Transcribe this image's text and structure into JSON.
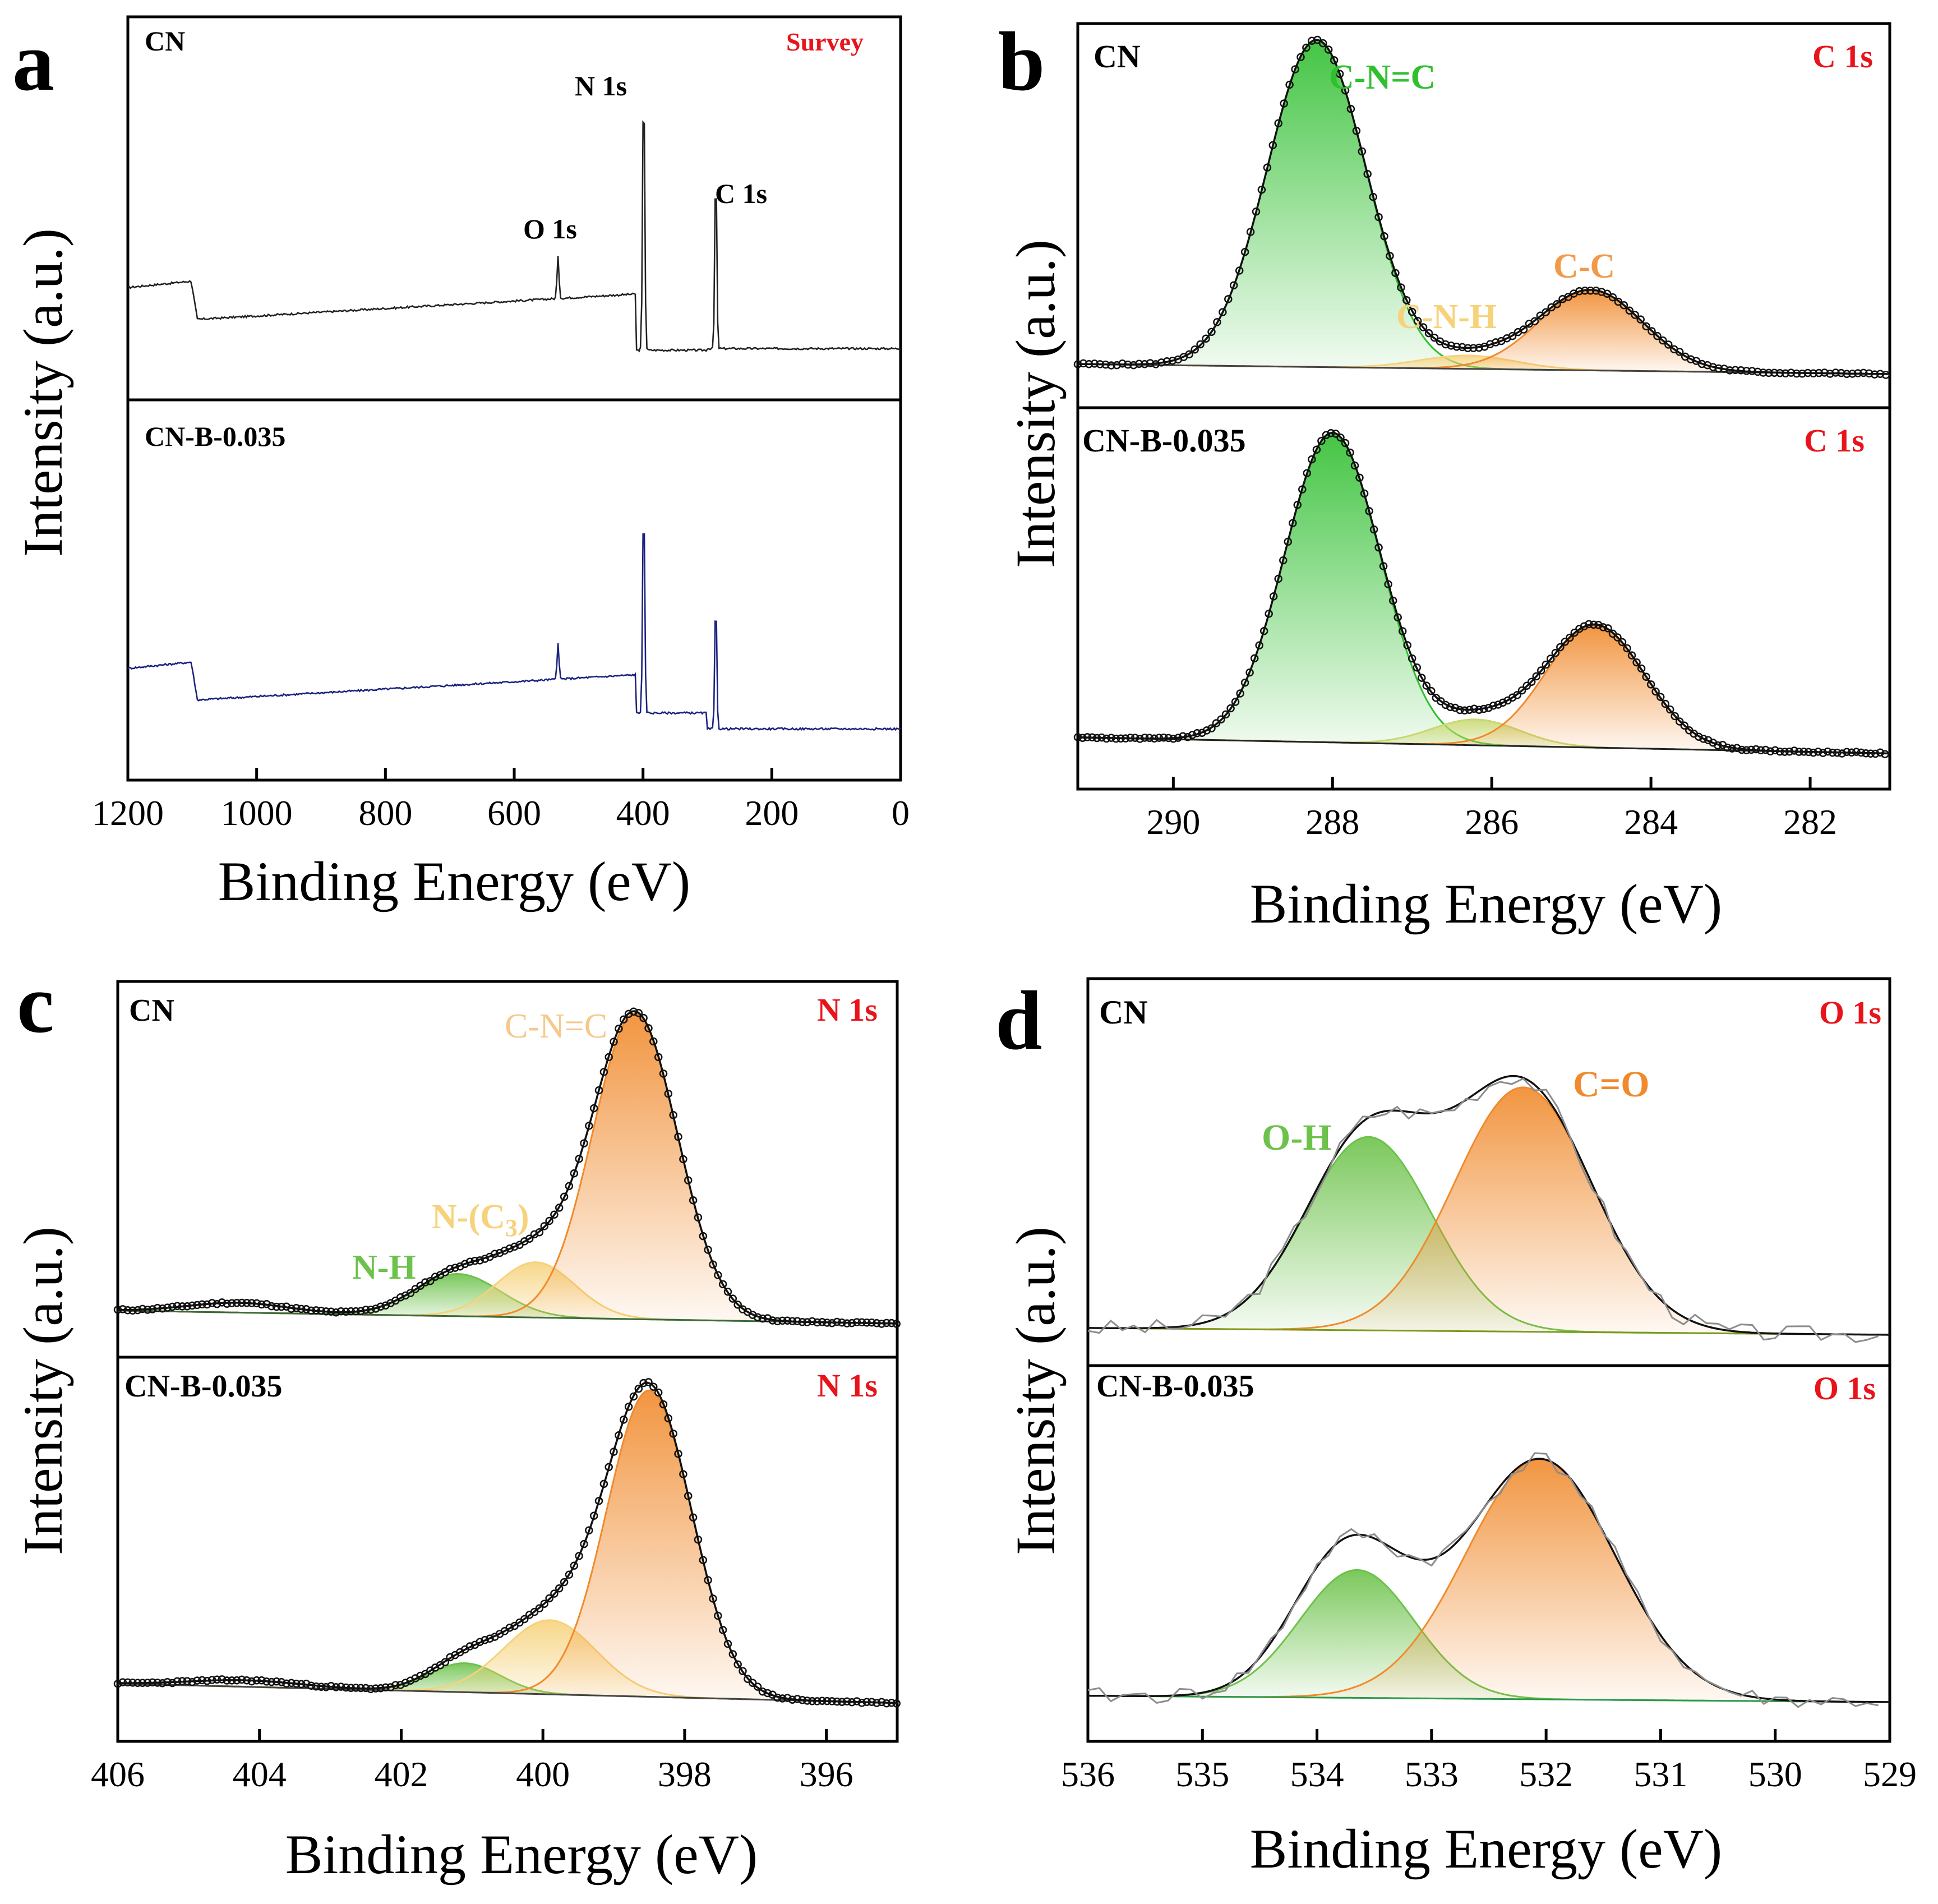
{
  "figure": {
    "colors": {
      "green": "#2fbf2f",
      "green_fill": "#5ad65a",
      "orange": "#f08a2c",
      "orange_fill": "#f39a4a",
      "yellow": "#f6d27a",
      "yellow_fill": "#f6dd8e",
      "olive": "#9bbf3a",
      "red_label": "#e8141b",
      "blue_trace": "#1a237e",
      "gray_trace": "#8c8c8c"
    },
    "panels": [
      {
        "label": "a",
        "y_label": "Intensity (a.u.)",
        "x_label": "Binding Energy (eV)",
        "xlim": [
          1200,
          0
        ],
        "xticks": [
          1200,
          1000,
          800,
          600,
          400,
          200,
          0
        ],
        "tick_labels": [
          "1200",
          "1000",
          "800",
          "600",
          "400",
          "200",
          "0"
        ],
        "subplots": [
          {
            "sample": "CN",
            "region": "Survey",
            "trace_color": "#222222",
            "peaks": [
              {
                "name": "O 1s",
                "x": 532
              },
              {
                "name": "N 1s",
                "x": 399
              },
              {
                "name": "C 1s",
                "x": 287
              }
            ]
          },
          {
            "sample": "CN-B-0.035",
            "region": "",
            "trace_color": "#1a237e",
            "peaks": [
              {
                "name": "",
                "x": 532
              },
              {
                "name": "",
                "x": 399
              },
              {
                "name": "",
                "x": 287
              }
            ]
          }
        ]
      },
      {
        "label": "b",
        "y_label": "Intensity (a.u.)",
        "x_label": "Binding Energy (eV)",
        "xlim": [
          291.2,
          281
        ],
        "xticks": [
          290,
          288,
          286,
          284,
          282
        ],
        "tick_labels": [
          "290",
          "288",
          "286",
          "284",
          "282"
        ],
        "subplots": [
          {
            "sample": "CN",
            "region": "C 1s",
            "components": [
              {
                "name": "C-N=C",
                "center": 288.2,
                "height": 0.98,
                "width": 0.62,
                "color": "#2fbf2f"
              },
              {
                "name": "C-N-H",
                "center": 286.3,
                "height": 0.04,
                "width": 0.6,
                "color": "#f6d27a"
              },
              {
                "name": "C-C",
                "center": 284.75,
                "height": 0.24,
                "width": 0.65,
                "color": "#f08a2c"
              }
            ]
          },
          {
            "sample": "CN-B-0.035",
            "region": "C 1s",
            "components": [
              {
                "name": "C-N=C",
                "center": 288.0,
                "height": 0.96,
                "width": 0.6,
                "color": "#2fbf2f"
              },
              {
                "name": "C-N-H",
                "center": 286.2,
                "height": 0.08,
                "width": 0.55,
                "color": "#c8d870"
              },
              {
                "name": "C-C",
                "center": 284.7,
                "height": 0.38,
                "width": 0.62,
                "color": "#f08a2c"
              }
            ]
          }
        ]
      },
      {
        "label": "c",
        "y_label": "Intensity (a.u.)",
        "x_label": "Binding Energy (eV)",
        "xlim": [
          406,
          395
        ],
        "xticks": [
          406,
          404,
          402,
          400,
          398,
          396
        ],
        "tick_labels": [
          "406",
          "404",
          "402",
          "400",
          "398",
          "396"
        ],
        "subplots": [
          {
            "sample": "CN",
            "region": "N 1s",
            "components": [
              {
                "name": "N-H",
                "center": 401.2,
                "height": 0.13,
                "width": 0.6,
                "color": "#6cc24a"
              },
              {
                "name": "N-(C3)",
                "center": 400.1,
                "height": 0.17,
                "width": 0.55,
                "color": "#f6d27a"
              },
              {
                "name": "C-N=C",
                "center": 398.7,
                "height": 0.94,
                "width": 0.6,
                "color": "#f08a2c"
              }
            ]
          },
          {
            "sample": "CN-B-0.035",
            "region": "N 1s",
            "components": [
              {
                "name": "",
                "center": 401.1,
                "height": 0.09,
                "width": 0.5,
                "color": "#6cc24a"
              },
              {
                "name": "",
                "center": 399.9,
                "height": 0.23,
                "width": 0.65,
                "color": "#f6d27a"
              },
              {
                "name": "",
                "center": 398.5,
                "height": 0.95,
                "width": 0.6,
                "color": "#f08a2c"
              }
            ]
          }
        ]
      },
      {
        "label": "d",
        "y_label": "Intensity (a.u.)",
        "x_label": "Binding Energy (eV)",
        "xlim": [
          536,
          529
        ],
        "xticks": [
          536,
          535,
          534,
          533,
          532,
          531,
          530,
          529
        ],
        "tick_labels": [
          "536",
          "535",
          "534",
          "533",
          "532",
          "531",
          "530",
          "529"
        ],
        "subplots": [
          {
            "sample": "CN",
            "region": "O 1s",
            "components": [
              {
                "name": "O-H",
                "center": 533.55,
                "height": 0.57,
                "width": 0.55,
                "color": "#6cc24a"
              },
              {
                "name": "C=O",
                "center": 532.2,
                "height": 0.72,
                "width": 0.6,
                "color": "#f08a2c"
              }
            ]
          },
          {
            "sample": "CN-B-0.035",
            "region": "O 1s",
            "components": [
              {
                "name": "",
                "center": 533.65,
                "height": 0.4,
                "width": 0.5,
                "color": "#6cc24a"
              },
              {
                "name": "",
                "center": 532.05,
                "height": 0.75,
                "width": 0.65,
                "color": "#f08a2c"
              }
            ]
          }
        ]
      }
    ]
  }
}
